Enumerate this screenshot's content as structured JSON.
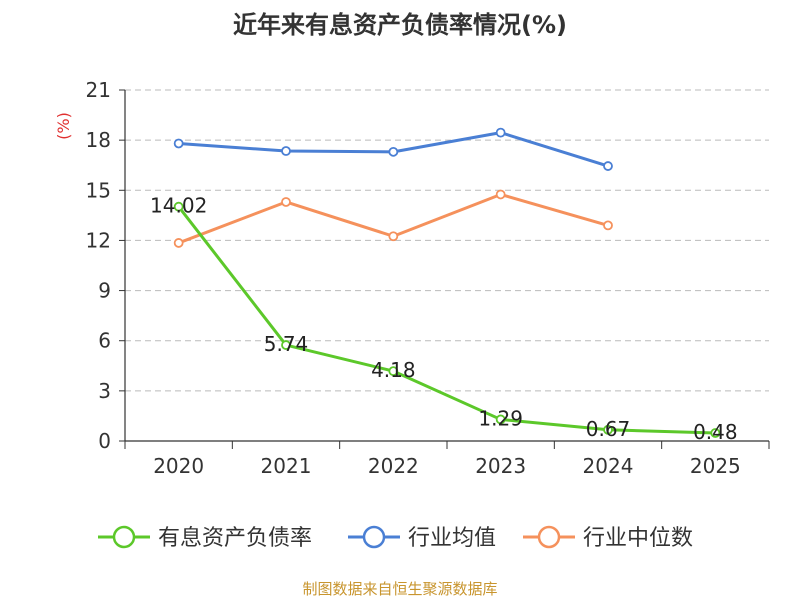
{
  "colors": {
    "background": "#ffffff",
    "unit": "#e03030",
    "source": "#c8952e",
    "grid": "#bbbbbb",
    "axis": "#333333"
  },
  "chart_data": {
    "type": "line",
    "title": "近年来有息资产负债率情况(%)",
    "ylabel": "(%)",
    "xlabel": "",
    "categories": [
      "2020",
      "2021",
      "2022",
      "2023",
      "2024",
      "2025"
    ],
    "ylim": [
      0,
      21
    ],
    "yticks": [
      0,
      3,
      6,
      9,
      12,
      15,
      18,
      21
    ],
    "grid": true,
    "legend_position": "bottom",
    "series": [
      {
        "name": "有息资产负债率",
        "color": "#5cc82a",
        "values": [
          14.02,
          5.74,
          4.18,
          1.29,
          0.67,
          0.48
        ],
        "show_labels": true
      },
      {
        "name": "行业均值",
        "color": "#4a7fd4",
        "values": [
          17.8,
          17.35,
          17.3,
          18.45,
          16.45,
          null
        ],
        "show_labels": false
      },
      {
        "name": "行业中位数",
        "color": "#f5915c",
        "values": [
          11.85,
          14.3,
          12.25,
          14.75,
          12.9,
          null
        ],
        "show_labels": false
      }
    ]
  },
  "source": "制图数据来自恒生聚源数据库"
}
